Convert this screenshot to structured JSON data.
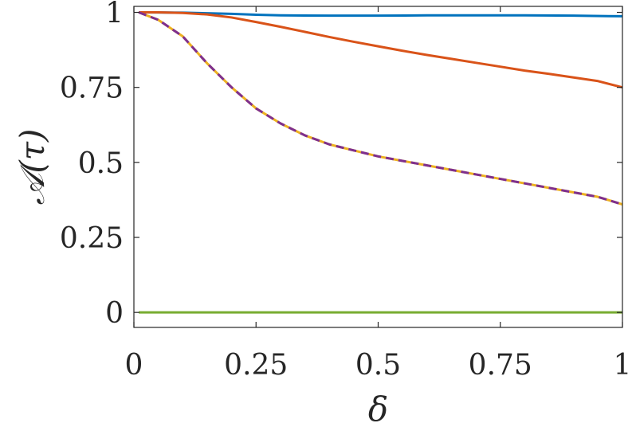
{
  "chart_data": {
    "type": "line",
    "xlabel": "δ",
    "ylabel": "𝒜(τ)",
    "xlim": [
      0,
      1
    ],
    "ylim": [
      -0.05,
      1.02
    ],
    "xticks": [
      0,
      0.25,
      0.5,
      0.75,
      1
    ],
    "xtick_labels": [
      "0",
      "0.25",
      "0.5",
      "0.75",
      "1"
    ],
    "yticks": [
      0,
      0.25,
      0.5,
      0.75,
      1
    ],
    "ytick_labels": [
      "0",
      "0.25",
      "0.5",
      "0.75",
      "1"
    ],
    "grid": false,
    "legend": "none",
    "series": [
      {
        "color": "#0072BD",
        "style": "solid",
        "x": [
          0.01,
          0.1,
          0.2,
          0.25,
          0.3,
          0.4,
          0.5,
          0.6,
          0.7,
          0.8,
          0.9,
          1.0
        ],
        "y": [
          1.0,
          0.999,
          0.995,
          0.992,
          0.99,
          0.989,
          0.989,
          0.99,
          0.99,
          0.99,
          0.989,
          0.987
        ]
      },
      {
        "color": "#D95319",
        "style": "solid",
        "x": [
          0.01,
          0.05,
          0.1,
          0.15,
          0.2,
          0.25,
          0.3,
          0.35,
          0.4,
          0.45,
          0.5,
          0.55,
          0.6,
          0.65,
          0.7,
          0.75,
          0.8,
          0.85,
          0.9,
          0.95,
          1.0
        ],
        "y": [
          1.0,
          1.0,
          0.998,
          0.993,
          0.983,
          0.968,
          0.952,
          0.935,
          0.918,
          0.902,
          0.887,
          0.872,
          0.858,
          0.845,
          0.832,
          0.819,
          0.806,
          0.795,
          0.783,
          0.771,
          0.75
        ]
      },
      {
        "color": "#EDB120",
        "style": "solid",
        "x": [
          0.01,
          0.05,
          0.1,
          0.15,
          0.2,
          0.25,
          0.3,
          0.35,
          0.4,
          0.45,
          0.5,
          0.55,
          0.6,
          0.65,
          0.7,
          0.75,
          0.8,
          0.85,
          0.9,
          0.95,
          1.0
        ],
        "y": [
          1.0,
          0.975,
          0.92,
          0.83,
          0.75,
          0.68,
          0.63,
          0.59,
          0.56,
          0.54,
          0.52,
          0.505,
          0.49,
          0.475,
          0.46,
          0.445,
          0.43,
          0.415,
          0.4,
          0.385,
          0.36
        ]
      },
      {
        "color": "#7E2F8E",
        "style": "dashed",
        "x": [
          0.01,
          0.05,
          0.1,
          0.15,
          0.2,
          0.25,
          0.3,
          0.35,
          0.4,
          0.45,
          0.5,
          0.55,
          0.6,
          0.65,
          0.7,
          0.75,
          0.8,
          0.85,
          0.9,
          0.95,
          1.0
        ],
        "y": [
          1.0,
          0.975,
          0.92,
          0.83,
          0.75,
          0.68,
          0.63,
          0.59,
          0.56,
          0.54,
          0.52,
          0.505,
          0.49,
          0.475,
          0.46,
          0.445,
          0.43,
          0.415,
          0.4,
          0.385,
          0.36
        ]
      },
      {
        "color": "#77AC30",
        "style": "solid",
        "x": [
          0.01,
          0.25,
          0.5,
          0.75,
          1.0
        ],
        "y": [
          0.0,
          0.0,
          0.0,
          0.0,
          0.0
        ]
      }
    ]
  }
}
